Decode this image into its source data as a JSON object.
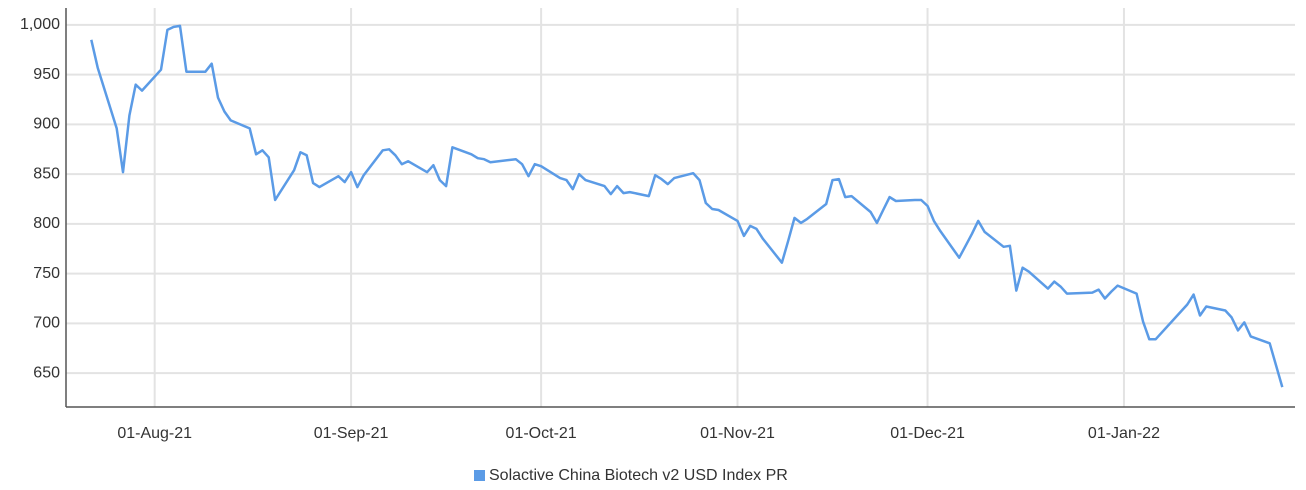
{
  "chart_data": {
    "type": "line",
    "x": [
      "2021-07-22",
      "2021-07-23",
      "2021-07-26",
      "2021-07-27",
      "2021-07-28",
      "2021-07-29",
      "2021-07-30",
      "2021-08-02",
      "2021-08-03",
      "2021-08-04",
      "2021-08-05",
      "2021-08-06",
      "2021-08-09",
      "2021-08-10",
      "2021-08-11",
      "2021-08-12",
      "2021-08-13",
      "2021-08-16",
      "2021-08-17",
      "2021-08-18",
      "2021-08-19",
      "2021-08-20",
      "2021-08-23",
      "2021-08-24",
      "2021-08-25",
      "2021-08-26",
      "2021-08-27",
      "2021-08-30",
      "2021-08-31",
      "2021-09-01",
      "2021-09-02",
      "2021-09-03",
      "2021-09-06",
      "2021-09-07",
      "2021-09-08",
      "2021-09-09",
      "2021-09-10",
      "2021-09-13",
      "2021-09-14",
      "2021-09-15",
      "2021-09-16",
      "2021-09-17",
      "2021-09-20",
      "2021-09-21",
      "2021-09-22",
      "2021-09-23",
      "2021-09-27",
      "2021-09-28",
      "2021-09-29",
      "2021-09-30",
      "2021-10-01",
      "2021-10-04",
      "2021-10-05",
      "2021-10-06",
      "2021-10-07",
      "2021-10-08",
      "2021-10-11",
      "2021-10-12",
      "2021-10-13",
      "2021-10-14",
      "2021-10-15",
      "2021-10-18",
      "2021-10-19",
      "2021-10-20",
      "2021-10-21",
      "2021-10-22",
      "2021-10-25",
      "2021-10-26",
      "2021-10-27",
      "2021-10-28",
      "2021-10-29",
      "2021-11-01",
      "2021-11-02",
      "2021-11-03",
      "2021-11-04",
      "2021-11-05",
      "2021-11-08",
      "2021-11-09",
      "2021-11-10",
      "2021-11-11",
      "2021-11-12",
      "2021-11-15",
      "2021-11-16",
      "2021-11-17",
      "2021-11-18",
      "2021-11-19",
      "2021-11-22",
      "2021-11-23",
      "2021-11-24",
      "2021-11-25",
      "2021-11-26",
      "2021-11-29",
      "2021-11-30",
      "2021-12-01",
      "2021-12-02",
      "2021-12-03",
      "2021-12-06",
      "2021-12-07",
      "2021-12-08",
      "2021-12-09",
      "2021-12-10",
      "2021-12-13",
      "2021-12-14",
      "2021-12-15",
      "2021-12-16",
      "2021-12-17",
      "2021-12-20",
      "2021-12-21",
      "2021-12-22",
      "2021-12-23",
      "2021-12-27",
      "2021-12-28",
      "2021-12-29",
      "2021-12-30",
      "2021-12-31",
      "2022-01-03",
      "2022-01-04",
      "2022-01-05",
      "2022-01-06",
      "2022-01-11",
      "2022-01-12",
      "2022-01-13",
      "2022-01-14",
      "2022-01-17",
      "2022-01-18",
      "2022-01-19",
      "2022-01-20",
      "2022-01-21",
      "2022-01-24",
      "2022-01-26"
    ],
    "series": [
      {
        "name": "Solactive China Biotech v2 USD Index PR",
        "color": "#5b9be6",
        "values": [
          985,
          957,
          896,
          852,
          909,
          940,
          934,
          955,
          995,
          998,
          999,
          953,
          953,
          961,
          927,
          913,
          904,
          896,
          870,
          874,
          867,
          824,
          854,
          872,
          869,
          841,
          837,
          848,
          842,
          852,
          837,
          849,
          874,
          875,
          869,
          860,
          863,
          852,
          859,
          844,
          838,
          877,
          870,
          866,
          865,
          862,
          865,
          860,
          848,
          860,
          858,
          846,
          844,
          835,
          850,
          844,
          838,
          830,
          838,
          831,
          832,
          828,
          849,
          845,
          840,
          846,
          851,
          844,
          821,
          815,
          814,
          803,
          788,
          798,
          795,
          785,
          761,
          783,
          806,
          801,
          805,
          820,
          844,
          845,
          827,
          828,
          812,
          801,
          814,
          827,
          823,
          824,
          824,
          818,
          803,
          793,
          766,
          778,
          790,
          803,
          792,
          777,
          778,
          733,
          756,
          752,
          735,
          742,
          737,
          730,
          731,
          734,
          725,
          732,
          738,
          730,
          702,
          684,
          684,
          719,
          729,
          708,
          717,
          713,
          706,
          693,
          701,
          687,
          680,
          636
        ]
      }
    ],
    "xlim": [
      "2021-07-18",
      "2022-01-28"
    ],
    "xticks": [
      {
        "value": "2021-08-01",
        "label": "01-Aug-21"
      },
      {
        "value": "2021-09-01",
        "label": "01-Sep-21"
      },
      {
        "value": "2021-10-01",
        "label": "01-Oct-21"
      },
      {
        "value": "2021-11-01",
        "label": "01-Nov-21"
      },
      {
        "value": "2021-12-01",
        "label": "01-Dec-21"
      },
      {
        "value": "2022-01-01",
        "label": "01-Jan-22"
      }
    ],
    "ylim": [
      616,
      1017
    ],
    "yticks": [
      650,
      700,
      750,
      800,
      850,
      900,
      950,
      {
        "value": 1000,
        "label": "1,000"
      }
    ],
    "grid": true,
    "legend": "bottom"
  }
}
